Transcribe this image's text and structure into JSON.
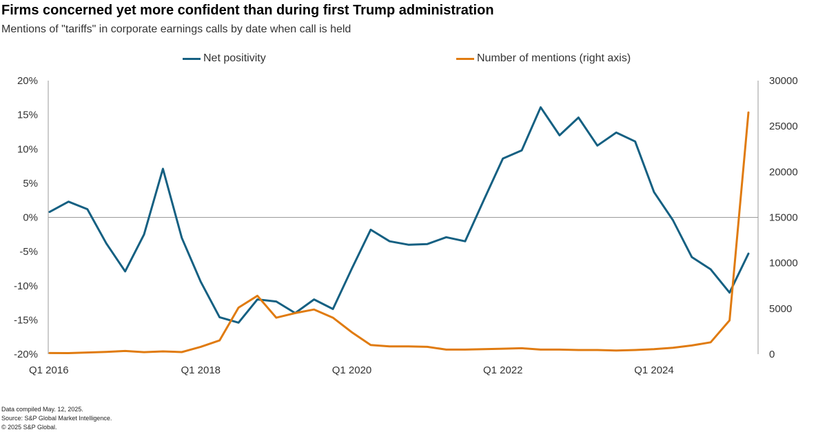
{
  "header": {
    "title": "Firms concerned yet more confident than during first Trump administration",
    "subtitle": "Mentions of \"tariffs\" in corporate earnings calls by date when call is held"
  },
  "footer": {
    "note": "Data compiled May. 12, 2025.",
    "source": "Source: S&P Global Market Intelligence.",
    "copyright": "© 2025 S&P Global."
  },
  "chart_data": {
    "type": "line",
    "title": "Firms concerned yet more confident than during first Trump administration",
    "subtitle": "Mentions of \"tariffs\" in corporate earnings calls by date when call is held",
    "x_tick_labels": [
      "Q1 2016",
      "Q1 2018",
      "Q1 2020",
      "Q1 2022",
      "Q1 2024"
    ],
    "x_tick_positions": [
      0,
      8,
      16,
      24,
      32
    ],
    "y_left": {
      "min": -20,
      "max": 20,
      "ticks": [
        -20,
        -15,
        -10,
        -5,
        0,
        5,
        10,
        15,
        20
      ],
      "tick_labels": [
        "-20%",
        "-15%",
        "-10%",
        "-5%",
        "0%",
        "5%",
        "10%",
        "15%",
        "20%"
      ]
    },
    "y_right": {
      "min": 0,
      "max": 30000,
      "ticks": [
        0,
        5000,
        10000,
        15000,
        20000,
        25000,
        30000
      ],
      "tick_labels": [
        "0",
        "5000",
        "10000",
        "15000",
        "20000",
        "25000",
        "30000"
      ]
    },
    "legend_placement": "top",
    "series": [
      {
        "name": "Net positivity",
        "axis": "left",
        "color": "#156082",
        "x": [
          0,
          1,
          2,
          3,
          4,
          5,
          6,
          7,
          8,
          9,
          10,
          11,
          12,
          13,
          14,
          15,
          16,
          17,
          18,
          19,
          20,
          21,
          22,
          23,
          24,
          25,
          26,
          27,
          28,
          29,
          30,
          31,
          32,
          33,
          34,
          35,
          36,
          37
        ],
        "values": [
          0.8,
          2.3,
          1.2,
          -3.8,
          -7.9,
          -2.5,
          7.1,
          -3.0,
          -9.4,
          -14.6,
          -15.4,
          -12.0,
          -12.3,
          -14.0,
          -12.0,
          -13.4,
          -7.5,
          -1.8,
          -3.5,
          -4.0,
          -3.9,
          -2.9,
          -3.5,
          2.6,
          8.6,
          9.8,
          16.1,
          12.0,
          14.6,
          10.5,
          12.4,
          11.1,
          3.7,
          -0.4,
          -5.8,
          -7.6,
          -11.0,
          -5.3
        ]
      },
      {
        "name": "Number of mentions (right axis)",
        "axis": "right",
        "color": "#e07b10",
        "x": [
          0,
          1,
          2,
          3,
          4,
          5,
          6,
          7,
          8,
          9,
          10,
          11,
          12,
          13,
          14,
          15,
          16,
          17,
          18,
          19,
          20,
          21,
          22,
          23,
          24,
          25,
          26,
          27,
          28,
          29,
          30,
          31,
          32,
          33,
          34,
          35,
          36,
          37
        ],
        "values": [
          120,
          110,
          180,
          250,
          350,
          220,
          300,
          230,
          800,
          1500,
          5100,
          6400,
          4000,
          4500,
          4900,
          4000,
          2400,
          1000,
          850,
          850,
          800,
          500,
          500,
          550,
          600,
          650,
          500,
          500,
          450,
          450,
          400,
          450,
          550,
          700,
          950,
          1300,
          3700,
          26500
        ]
      }
    ]
  }
}
